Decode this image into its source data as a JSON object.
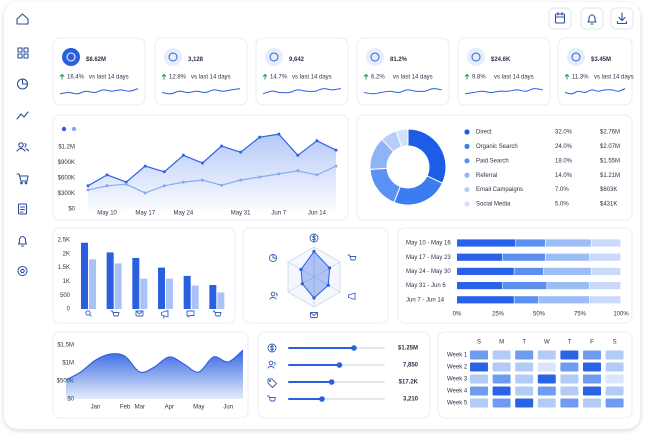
{
  "kpis": [
    {
      "value": "$8.62M",
      "change": "16.4%",
      "comparison": "vs last 14 days",
      "trend": [
        4,
        5,
        4,
        6,
        5,
        7,
        6,
        7,
        6,
        8
      ]
    },
    {
      "value": "3,128",
      "change": "12.8%",
      "comparison": "vs last 14 days",
      "trend": [
        5,
        4,
        6,
        5,
        6,
        5,
        7,
        6,
        7,
        8
      ]
    },
    {
      "value": "9,642",
      "change": "14.7%",
      "comparison": "vs last 14 days",
      "trend": [
        4,
        6,
        5,
        5,
        7,
        6,
        6,
        8,
        7,
        8
      ]
    },
    {
      "value": "81.2%",
      "change": "6.2%",
      "comparison": "vs last 14 days",
      "trend": [
        5,
        4,
        5,
        6,
        5,
        7,
        6,
        6,
        8,
        7
      ]
    },
    {
      "value": "$24.6K",
      "change": "9.8%",
      "comparison": "vs last 14 days",
      "trend": [
        4,
        5,
        6,
        5,
        6,
        6,
        7,
        6,
        8,
        7
      ]
    },
    {
      "value": "$3.45M",
      "change": "11.3%",
      "comparison": "vs last 14 days",
      "trend": [
        5,
        4,
        6,
        5,
        7,
        6,
        7,
        7,
        6,
        8
      ]
    }
  ],
  "chart_data": [
    {
      "type": "line",
      "categories": [
        null,
        "May 10",
        null,
        "May 17",
        null,
        "May 24",
        null,
        null,
        "May 31",
        null,
        "Jun 7",
        null,
        "Jun 14",
        null
      ],
      "series": [
        {
          "color": "#2c63e8",
          "values": [
            450000,
            660000,
            520000,
            830000,
            720000,
            1040000,
            890000,
            1220000,
            1100000,
            1390000,
            1450000,
            1040000,
            1320000,
            1140000
          ]
        },
        {
          "color": "#86aaf2",
          "values": [
            370000,
            450000,
            480000,
            310000,
            450000,
            520000,
            560000,
            460000,
            560000,
            620000,
            680000,
            740000,
            660000,
            830000
          ]
        }
      ],
      "ylim": [
        0,
        1500000
      ],
      "yticks": [
        {
          "value": 0,
          "label": "$0"
        },
        {
          "value": 300000,
          "label": "$300K"
        },
        {
          "value": 600000,
          "label": "$600K"
        },
        {
          "value": 900000,
          "label": "$900K"
        },
        {
          "value": 1200000,
          "label": "$1.2M"
        }
      ]
    },
    {
      "type": "pie",
      "categories": [
        "Direct",
        "Organic Search",
        "Paid Search",
        "Referral",
        "Email Campaigns",
        "Social Media"
      ],
      "values": [
        32,
        24,
        18,
        14,
        7,
        5
      ],
      "value_labels": [
        "32.0%",
        "24.0%",
        "18.0%",
        "14.0%",
        "7.0%",
        "5.0%"
      ],
      "amounts": [
        "$2.76M",
        "$2.07M",
        "$1.55M",
        "$1.21M",
        "$603K",
        "$431K"
      ],
      "colors": [
        "#1d5ce6",
        "#3b7cf0",
        "#5a91f2",
        "#8fb4f5",
        "#b6cdf8",
        "#d3e1fb"
      ]
    },
    {
      "type": "bar",
      "series": [
        {
          "color": "#2a5fe0",
          "values": [
            2400,
            2050,
            1850,
            1500,
            1200,
            870
          ]
        },
        {
          "color": "#a9c3f6",
          "values": [
            1800,
            1650,
            1100,
            1100,
            850,
            600
          ]
        }
      ],
      "ylim": [
        0,
        2500
      ],
      "yticks": [
        0,
        500,
        {
          "value": 1000,
          "label": "1K"
        },
        {
          "value": 1500,
          "label": "1.5K"
        },
        {
          "value": 2000,
          "label": "2K"
        },
        {
          "value": 2500,
          "label": "2.5K"
        }
      ]
    },
    {
      "type": "radar",
      "values": [
        85,
        60,
        55,
        70,
        45,
        50
      ],
      "rlim": [
        0,
        100
      ],
      "color": "#2a5fe0"
    },
    {
      "type": "bar",
      "orientation": "horizontal",
      "stacked": true,
      "categories": [
        "May 10 - May 16",
        "May 17 - May 23",
        "May 24 - May 30",
        "May 31 - Jun 6",
        "Jun 7 - Jun 14"
      ],
      "series": [
        {
          "color": "#2962e8",
          "values": [
            36,
            28,
            35,
            28,
            35
          ]
        },
        {
          "color": "#5b8ff0",
          "values": [
            18,
            26,
            18,
            27,
            15
          ]
        },
        {
          "color": "#9dbdf6",
          "values": [
            28,
            27,
            29,
            26,
            31
          ]
        },
        {
          "color": "#c9dafb",
          "values": [
            18,
            19,
            18,
            19,
            19
          ]
        }
      ],
      "xlim": [
        0,
        100
      ],
      "xticks": [
        {
          "value": 0,
          "label": "0%"
        },
        {
          "value": 25,
          "label": "25%"
        },
        {
          "value": 50,
          "label": "50%"
        },
        {
          "value": 75,
          "label": "75%"
        },
        {
          "value": 100,
          "label": "100%"
        }
      ]
    },
    {
      "type": "area",
      "categories": [
        null,
        null,
        "Jan",
        null,
        "Feb",
        "Mar",
        null,
        "Apr",
        null,
        "May",
        null,
        "Jun",
        null
      ],
      "values": [
        530000,
        750000,
        1080000,
        1250000,
        1190000,
        750000,
        890000,
        1170000,
        970000,
        750000,
        1170000,
        1030000,
        1360000
      ],
      "color": "#2a5fe0",
      "ylim": [
        0,
        1500000
      ],
      "yticks": [
        {
          "value": 0,
          "label": "$0"
        },
        {
          "value": 500000,
          "label": "$500K"
        },
        {
          "value": 1000000,
          "label": "$1M"
        },
        {
          "value": 1500000,
          "label": "$1.5M"
        }
      ]
    },
    {
      "type": "heatmap",
      "columns": [
        "S",
        "M",
        "T",
        "W",
        "T",
        "F",
        "S"
      ],
      "rows": [
        "Week 1",
        "Week 2",
        "Week 3",
        "Week 4",
        "Week 5"
      ],
      "values": [
        [
          3,
          2,
          3,
          2,
          4,
          3,
          2
        ],
        [
          4,
          2,
          2,
          1,
          3,
          4,
          2
        ],
        [
          2,
          3,
          2,
          4,
          2,
          3,
          1
        ],
        [
          3,
          4,
          2,
          3,
          2,
          4,
          2
        ],
        [
          2,
          3,
          4,
          2,
          3,
          2,
          3
        ]
      ],
      "zlim": [
        1,
        4
      ],
      "colorscale": [
        "#dbe6fc",
        "#b3cbf7",
        "#6f9bf0",
        "#2a63e6"
      ]
    }
  ],
  "sliders": [
    {
      "value": "$1.25M",
      "progress": 68
    },
    {
      "value": "7,850",
      "progress": 53
    },
    {
      "value": "$17.2K",
      "progress": 45
    },
    {
      "value": "3,210",
      "progress": 35
    }
  ]
}
